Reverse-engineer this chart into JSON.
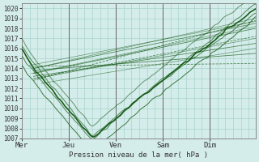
{
  "title": "",
  "xlabel": "Pression niveau de la mer( hPa )",
  "ylabel": "",
  "bg_color": "#d4ecea",
  "grid_color": "#a8d4ce",
  "line_color": "#1a5c1a",
  "ylim": [
    1007,
    1020.5
  ],
  "yticks": [
    1007,
    1008,
    1009,
    1010,
    1011,
    1012,
    1013,
    1014,
    1015,
    1016,
    1017,
    1018,
    1019,
    1020
  ],
  "day_labels": [
    "Mer",
    "Jeu",
    "Ven",
    "Sam",
    "Dim"
  ],
  "day_positions": [
    0,
    48,
    96,
    144,
    192
  ],
  "total_points": 240
}
